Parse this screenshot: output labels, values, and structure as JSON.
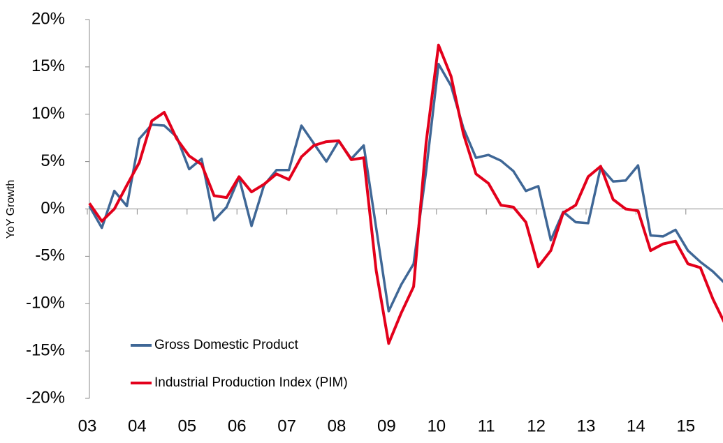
{
  "chart_data": {
    "type": "line",
    "y_label": "YoY Growth",
    "categories": [
      "03",
      null,
      null,
      null,
      "04",
      null,
      null,
      null,
      "05",
      null,
      null,
      null,
      "06",
      null,
      null,
      null,
      "07",
      null,
      null,
      null,
      "08",
      null,
      null,
      null,
      "09",
      null,
      null,
      null,
      "10",
      null,
      null,
      null,
      "11",
      null,
      null,
      null,
      "12",
      null,
      null,
      null,
      "13",
      null,
      null,
      null,
      "14",
      null,
      null,
      null,
      "15",
      null,
      null,
      null
    ],
    "series": [
      {
        "name": "Gross Domestic Product",
        "color": "#3f6796",
        "values": [
          0.3,
          -2.0,
          1.9,
          0.3,
          7.4,
          8.9,
          8.8,
          7.6,
          4.2,
          5.3,
          -1.2,
          0.2,
          3.3,
          -1.8,
          2.5,
          4.1,
          4.1,
          8.8,
          6.9,
          5.0,
          7.2,
          5.3,
          6.7,
          -2.0,
          -10.8,
          -8.0,
          -5.8,
          4.0,
          15.3,
          13.0,
          8.5,
          5.4,
          5.7,
          5.1,
          4.0,
          1.9,
          2.4,
          -3.3,
          -0.3,
          -1.4,
          -1.5,
          4.4,
          2.9,
          3.0,
          4.6,
          -2.8,
          -2.9,
          -2.2,
          -4.4,
          -5.6,
          -6.6,
          -7.9
        ]
      },
      {
        "name": "Industrial Production Index (PIM)",
        "color": "#e3001b",
        "values": [
          0.6,
          -1.3,
          0.0,
          2.5,
          4.9,
          9.3,
          10.2,
          7.4,
          5.6,
          4.7,
          1.4,
          1.2,
          3.4,
          1.8,
          2.6,
          3.7,
          3.1,
          5.5,
          6.7,
          7.1,
          7.2,
          5.2,
          5.4,
          -6.5,
          -14.2,
          -11.0,
          -8.2,
          7.0,
          17.3,
          14.0,
          7.9,
          3.7,
          2.7,
          0.4,
          0.2,
          -1.4,
          -6.1,
          -4.4,
          -0.4,
          0.4,
          3.4,
          4.5,
          1.0,
          0.0,
          -0.2,
          -4.4,
          -3.7,
          -3.4,
          -5.8,
          -6.2,
          -9.5,
          -12.2
        ]
      }
    ],
    "ylim": [
      -20,
      20
    ],
    "yticks": [
      {
        "value": -20,
        "label": "-20%"
      },
      {
        "value": -15,
        "label": "-15%"
      },
      {
        "value": -10,
        "label": "-10%"
      },
      {
        "value": -5,
        "label": "-5%"
      },
      {
        "value": 0,
        "label": "0%"
      },
      {
        "value": 5,
        "label": "5%"
      },
      {
        "value": 10,
        "label": "10%"
      },
      {
        "value": 15,
        "label": "15%"
      },
      {
        "value": 20,
        "label": "20%"
      }
    ],
    "legend": "lower left",
    "grid": false
  }
}
